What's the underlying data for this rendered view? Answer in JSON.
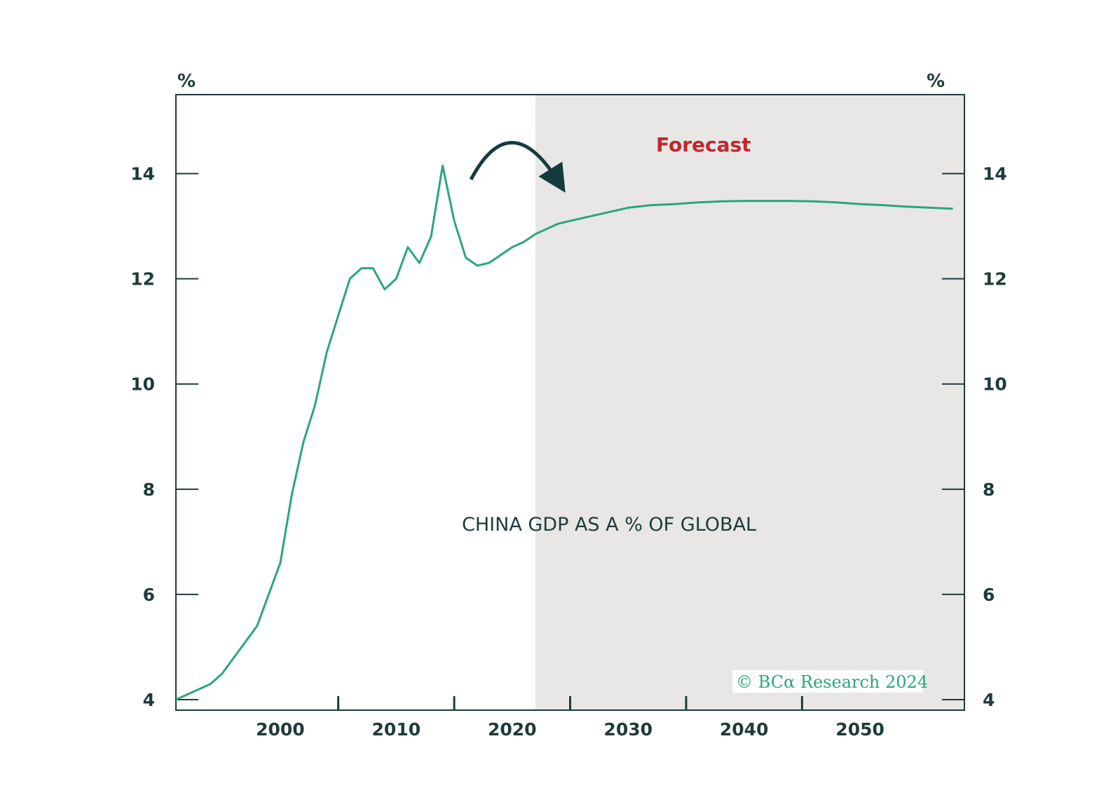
{
  "colors": {
    "line": "#2aa77a",
    "axis": "#1f3b3b",
    "forecast_bg": "#e8e7e5",
    "forecast_text": "#c0272d",
    "credit": "#2aa77a",
    "arrow": "#163b3e"
  },
  "chart_data": {
    "type": "line",
    "title": "CHINA GDP AS A % OF GLOBAL",
    "ylabel_left": "%",
    "ylabel_right": "%",
    "forecast_label": "Forecast",
    "credit": "© BCα Research 2024",
    "xlim": [
      1991,
      2059
    ],
    "ylim": [
      3.8,
      15.5
    ],
    "forecast_start": 2022,
    "x_ticks": [
      2000,
      2010,
      2020,
      2030,
      2040,
      2050
    ],
    "y_ticks": [
      4,
      6,
      8,
      10,
      12,
      14
    ],
    "series": [
      {
        "name": "China GDP as % of global",
        "x": [
          1991,
          1992,
          1993,
          1994,
          1995,
          1996,
          1997,
          1998,
          1999,
          2000,
          2001,
          2002,
          2003,
          2004,
          2005,
          2006,
          2007,
          2008,
          2009,
          2010,
          2011,
          2012,
          2013,
          2014,
          2015,
          2016,
          2017,
          2018,
          2019,
          2020,
          2021,
          2022,
          2023,
          2024,
          2025,
          2026,
          2027,
          2028,
          2029,
          2030,
          2032,
          2034,
          2036,
          2038,
          2040,
          2042,
          2044,
          2046,
          2048,
          2050,
          2052,
          2054,
          2056,
          2058
        ],
        "values": [
          4.0,
          4.1,
          4.2,
          4.3,
          4.5,
          4.8,
          5.1,
          5.4,
          6.0,
          6.6,
          7.9,
          8.9,
          9.6,
          10.6,
          11.3,
          12.0,
          12.2,
          12.2,
          11.8,
          12.0,
          12.6,
          12.3,
          12.8,
          14.15,
          13.1,
          12.4,
          12.25,
          12.3,
          12.45,
          12.6,
          12.7,
          12.85,
          12.95,
          13.05,
          13.1,
          13.15,
          13.2,
          13.25,
          13.3,
          13.35,
          13.4,
          13.42,
          13.45,
          13.47,
          13.48,
          13.48,
          13.48,
          13.47,
          13.45,
          13.42,
          13.4,
          13.37,
          13.35,
          13.33
        ]
      }
    ]
  }
}
